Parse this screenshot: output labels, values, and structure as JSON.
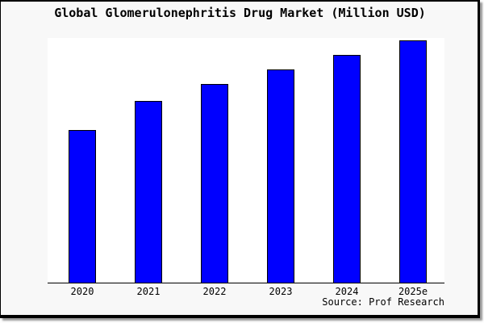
{
  "chart_data": {
    "type": "bar",
    "title": "Global Glomerulonephritis Drug Market (Million USD)",
    "categories": [
      "2020",
      "2021",
      "2022",
      "2023",
      "2024",
      "2025e"
    ],
    "values": [
      63,
      75,
      82,
      88,
      94,
      100
    ],
    "values_note": "no y-axis or data labels shown; values estimated from bar heights as percent of tallest (2025e) bar",
    "xlabel": "",
    "ylabel": "",
    "ylim": [
      0,
      100
    ],
    "grid": false,
    "legend": "none",
    "bar_color": "#0000ff",
    "bar_outline_color": "#000000"
  },
  "footer": {
    "source_label": "Source: Prof Research"
  },
  "colors": {
    "page_background": "#f8f8f8",
    "plot_background": "#ffffff",
    "frame_border": "#000000",
    "axis_line": "#000000",
    "text": "#000000"
  }
}
